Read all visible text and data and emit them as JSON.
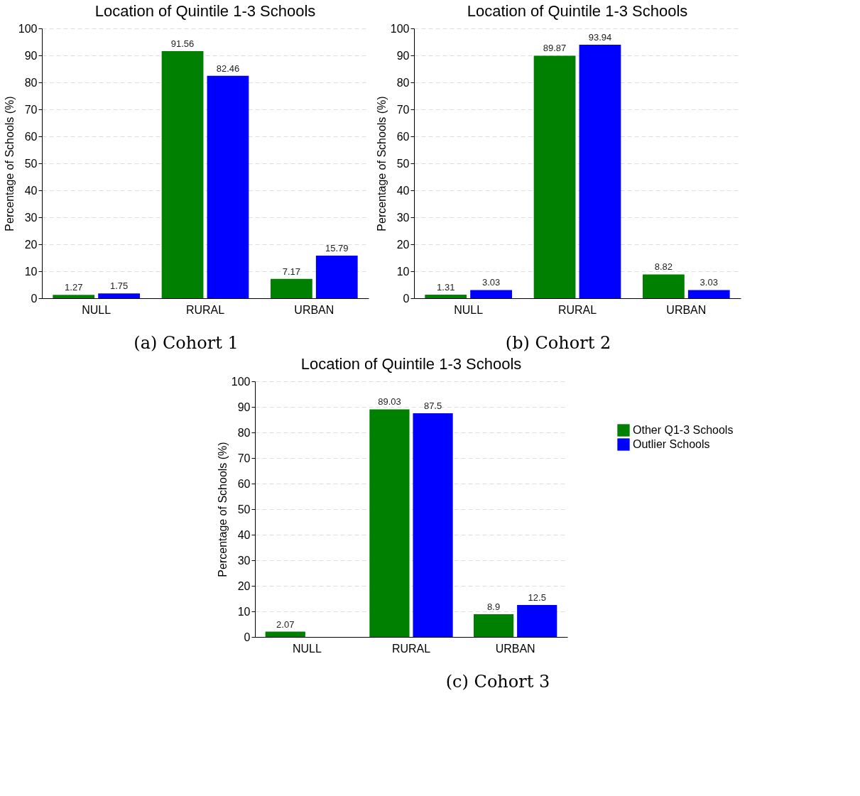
{
  "chart_data": [
    {
      "type": "bar",
      "title": "Location of Quintile 1-3 Schools",
      "ylabel": "Percentage of Schools (%)",
      "categories": [
        "NULL",
        "RURAL",
        "URBAN"
      ],
      "series": [
        {
          "color": "#008000",
          "values": [
            1.27,
            91.56,
            7.17
          ]
        },
        {
          "color": "#0000ff",
          "values": [
            1.75,
            82.46,
            15.79
          ]
        }
      ],
      "ylim": [
        0,
        100
      ],
      "yticks": [
        0,
        10,
        20,
        30,
        40,
        50,
        60,
        70,
        80,
        90,
        100
      ],
      "grid": "y",
      "data_labels": true,
      "annotations": [
        "(a) Cohort 1"
      ]
    },
    {
      "type": "bar",
      "title": "Location of Quintile 1-3 Schools",
      "ylabel": "Percentage of Schools (%)",
      "categories": [
        "NULL",
        "RURAL",
        "URBAN"
      ],
      "series": [
        {
          "color": "#008000",
          "values": [
            1.31,
            89.87,
            8.82
          ]
        },
        {
          "color": "#0000ff",
          "values": [
            3.03,
            93.94,
            3.03
          ]
        }
      ],
      "ylim": [
        0,
        100
      ],
      "yticks": [
        0,
        10,
        20,
        30,
        40,
        50,
        60,
        70,
        80,
        90,
        100
      ],
      "grid": "y",
      "data_labels": true,
      "annotations": [
        "(b) Cohort 2"
      ]
    },
    {
      "type": "bar",
      "title": "Location of Quintile 1-3 Schools",
      "ylabel": "Percentage of Schools (%)",
      "categories": [
        "NULL",
        "RURAL",
        "URBAN"
      ],
      "series": [
        {
          "name": "Other  Q1-3 Schools",
          "color": "#008000",
          "values": [
            2.07,
            89.03,
            8.9
          ]
        },
        {
          "name": "Outlier Schools",
          "color": "#0000ff",
          "values": [
            null,
            87.5,
            12.5
          ]
        }
      ],
      "ylim": [
        0,
        100
      ],
      "yticks": [
        0,
        10,
        20,
        30,
        40,
        50,
        60,
        70,
        80,
        90,
        100
      ],
      "grid": "y",
      "data_labels": true,
      "legend": "right",
      "annotations": [
        "(c) Cohort 3"
      ]
    }
  ]
}
